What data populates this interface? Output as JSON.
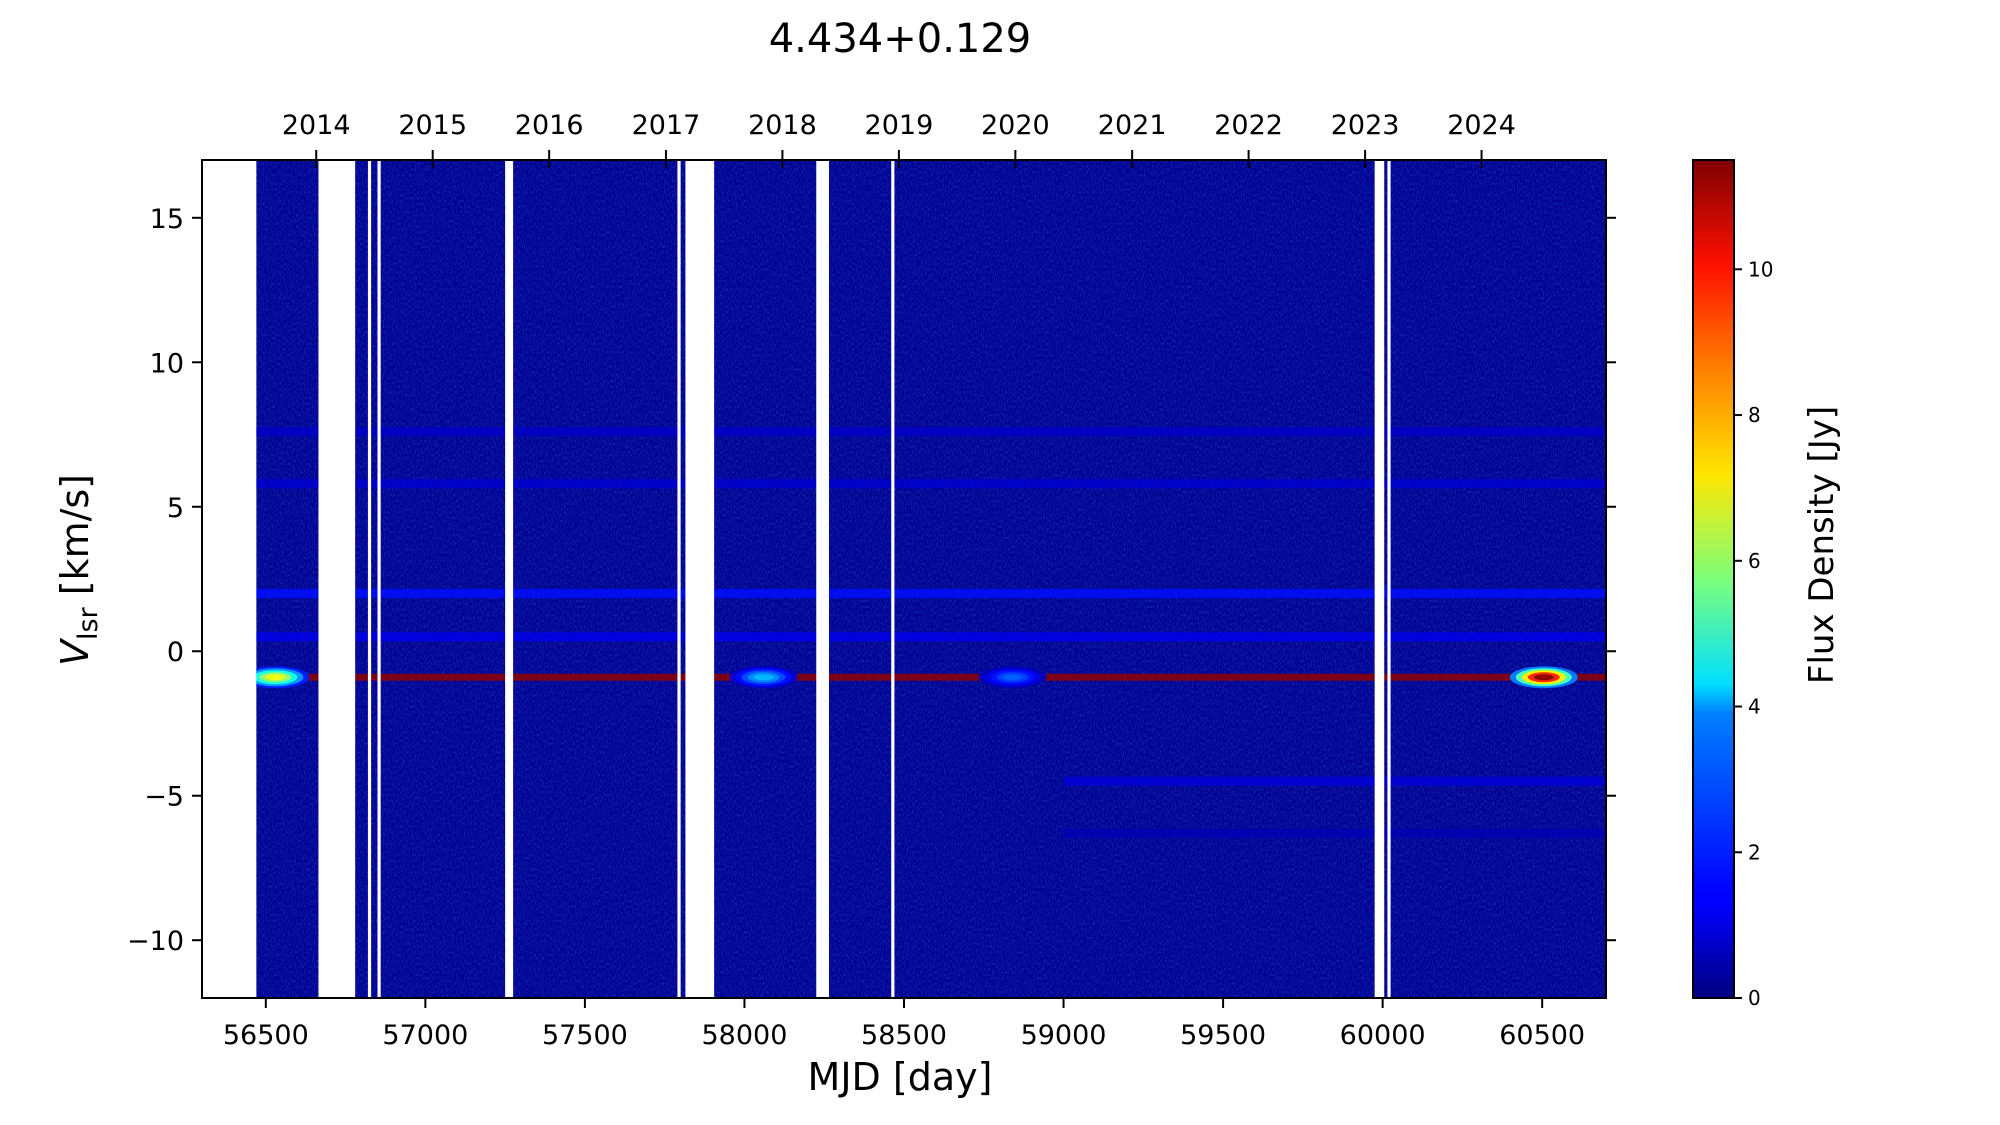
{
  "chart_data": {
    "type": "heatmap",
    "title": "4.434+0.129",
    "xlabel": "MJD [day]",
    "ylabel_main": "V",
    "ylabel_sub": "lsr",
    "ylabel_unit": " [km/s]",
    "colorbar_label": "Flux Density [Jy]",
    "xlim": [
      56300,
      60700
    ],
    "ylim": [
      -12,
      17
    ],
    "x_ticks": [
      56500,
      57000,
      57500,
      58000,
      58500,
      59000,
      59500,
      60000,
      60500
    ],
    "y_ticks": [
      -10,
      -5,
      0,
      5,
      10,
      15
    ],
    "top_axis": {
      "years": [
        "2014",
        "2015",
        "2016",
        "2017",
        "2018",
        "2019",
        "2020",
        "2021",
        "2022",
        "2023",
        "2024"
      ],
      "mjd": [
        56658,
        57023,
        57388,
        57754,
        58119,
        58484,
        58849,
        59215,
        59580,
        59945,
        60310
      ]
    },
    "colorbar": {
      "range": [
        0,
        11.5
      ],
      "ticks": [
        0,
        2,
        4,
        6,
        8,
        10
      ],
      "colormap": "jet"
    },
    "observed_range_mjd": [
      56470,
      60700
    ],
    "data_gaps_mjd": [
      [
        56300,
        56470
      ],
      [
        56665,
        56780
      ],
      [
        56820,
        56830
      ],
      [
        56850,
        56860
      ],
      [
        57250,
        57275
      ],
      [
        57790,
        57800
      ],
      [
        57815,
        57905
      ],
      [
        58225,
        58265
      ],
      [
        58460,
        58470
      ],
      [
        59975,
        60005
      ],
      [
        60015,
        60025
      ]
    ],
    "emission_features": [
      {
        "velocity": -0.9,
        "mjd_start": 56470,
        "mjd_end": 60700,
        "peak_jy": 11.3,
        "peak_mjd": 60505
      },
      {
        "velocity": 2.0,
        "mjd_start": 56470,
        "mjd_end": 60700,
        "peak_jy": 1.6
      },
      {
        "velocity": 0.5,
        "mjd_start": 56470,
        "mjd_end": 60700,
        "peak_jy": 1.2
      },
      {
        "velocity": 5.8,
        "mjd_start": 56470,
        "mjd_end": 60700,
        "peak_jy": 0.9
      },
      {
        "velocity": 7.6,
        "mjd_start": 56470,
        "mjd_end": 60700,
        "peak_jy": 0.8
      },
      {
        "velocity": -4.5,
        "mjd_start": 59000,
        "mjd_end": 60700,
        "peak_jy": 1.0
      },
      {
        "velocity": -6.3,
        "mjd_start": 59000,
        "mjd_end": 60700,
        "peak_jy": 0.6
      }
    ],
    "flare_events": [
      {
        "mjd": 56530,
        "velocity": -0.9,
        "peak_jy": 7.0
      },
      {
        "mjd": 58060,
        "velocity": -0.9,
        "peak_jy": 3.5
      },
      {
        "mjd": 58840,
        "velocity": -0.9,
        "peak_jy": 2.5
      },
      {
        "mjd": 60505,
        "velocity": -0.9,
        "peak_jy": 11.3
      }
    ]
  }
}
